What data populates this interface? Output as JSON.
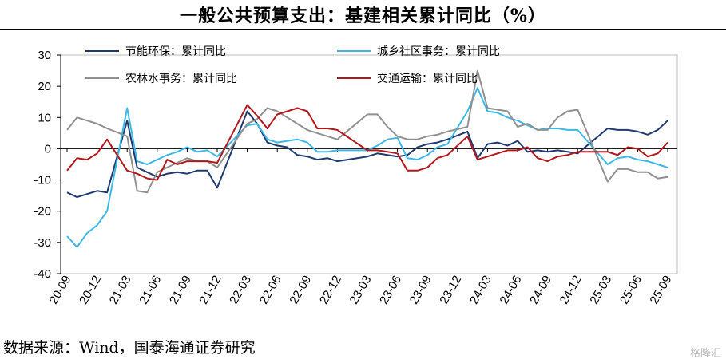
{
  "header": {
    "title": "一般公共预算支出：基建相关累计同比（%）"
  },
  "footer": {
    "source": "数据来源：Wind，国泰海通证券研究",
    "watermark": "格隆汇"
  },
  "chart_data": {
    "type": "line",
    "title": "一般公共预算支出：基建相关累计同比（%）",
    "xlabel": "",
    "ylabel": "",
    "ylim": [
      -40,
      30
    ],
    "yticks": [
      30,
      20,
      10,
      0,
      -10,
      -20,
      -30,
      -40
    ],
    "x": [
      "20-09",
      "20-10",
      "20-11",
      "20-12",
      "21-01",
      "21-02",
      "21-03",
      "21-04",
      "21-05",
      "21-06",
      "21-07",
      "21-08",
      "21-09",
      "21-10",
      "21-11",
      "21-12",
      "22-01",
      "22-02",
      "22-03",
      "22-04",
      "22-05",
      "22-06",
      "22-07",
      "22-08",
      "22-09",
      "22-10",
      "22-11",
      "22-12",
      "23-01",
      "23-02",
      "23-03",
      "23-04",
      "23-05",
      "23-06",
      "23-07",
      "23-08",
      "23-09",
      "23-10",
      "23-11",
      "23-12",
      "24-01",
      "24-02",
      "24-03",
      "24-04",
      "24-05",
      "24-06",
      "24-07",
      "24-08",
      "24-09",
      "24-10",
      "24-11",
      "24-12",
      "25-01",
      "25-02",
      "25-03",
      "25-04",
      "25-05",
      "25-06",
      "25-07",
      "25-08",
      "25-09"
    ],
    "xtick_labels": [
      "20-09",
      "20-12",
      "21-03",
      "21-06",
      "21-09",
      "21-12",
      "22-03",
      "22-06",
      "22-09",
      "22-12",
      "23-03",
      "23-06",
      "23-09",
      "23-12",
      "24-03",
      "24-06",
      "24-09",
      "24-12",
      "25-03",
      "25-06",
      "25-09"
    ],
    "grid": false,
    "legend_position": "top",
    "series": [
      {
        "name": "节能环保：累计同比",
        "color": "#1f3a6e",
        "values": [
          -14,
          -15.5,
          -14.5,
          -13.5,
          -14,
          null,
          9,
          -6,
          -7.5,
          -9,
          -8,
          -7.5,
          -8,
          -7,
          -7,
          -12.5,
          null,
          null,
          12,
          8,
          2,
          1,
          0.5,
          -2,
          -2.5,
          -3.5,
          -3,
          -4,
          null,
          null,
          -2.5,
          -1.5,
          -2,
          -2.5,
          -2,
          0.5,
          1.5,
          2,
          3,
          null,
          5.5,
          -3,
          1.5,
          2,
          1,
          2.5,
          -1,
          -0.5,
          -1,
          -0.5,
          -1,
          -1.5,
          null,
          null,
          6.5,
          6,
          6,
          5.5,
          4.5,
          6,
          9
        ]
      },
      {
        "name": "城乡社区事务：累计同比",
        "color": "#3db8e6",
        "values": [
          -28,
          -31.5,
          -27,
          -24.5,
          -20,
          null,
          13,
          -4,
          -5,
          -3.5,
          -2,
          -1,
          0.5,
          -1,
          -0.5,
          -2.5,
          null,
          null,
          7.5,
          8,
          3,
          2,
          2.5,
          3,
          2,
          -1,
          -1,
          -0.5,
          null,
          null,
          -0.5,
          1,
          3,
          3.5,
          -3,
          -3.5,
          -2,
          0.5,
          1.5,
          null,
          12,
          19.5,
          12,
          11.5,
          10,
          9,
          7.5,
          6,
          6.5,
          6.5,
          6,
          6,
          null,
          null,
          -5,
          -3,
          -2.5,
          -3.5,
          -4,
          -5,
          -6
        ]
      },
      {
        "name": "农林水事务：累计同比",
        "color": "#909090",
        "values": [
          6,
          10,
          9,
          8,
          6.5,
          null,
          4,
          -13.5,
          -14,
          -7.5,
          -6,
          -4.5,
          -3,
          -4,
          -4,
          -6,
          null,
          null,
          8,
          9.5,
          13,
          12,
          10,
          8,
          6,
          5,
          4,
          3,
          null,
          null,
          11,
          11,
          7,
          4,
          3,
          3,
          4,
          4.5,
          5.5,
          null,
          7,
          25,
          13,
          12.5,
          12,
          7,
          8,
          6,
          6,
          10,
          12,
          12.5,
          null,
          null,
          -10.5,
          -6.5,
          -6.5,
          -7.5,
          -7.5,
          -9.5,
          -9
        ]
      },
      {
        "name": "交通运输：累计同比",
        "color": "#b3171c",
        "values": [
          -7,
          -3,
          -3.5,
          -1.5,
          3,
          null,
          -7,
          -8,
          -9.5,
          -10,
          -3.5,
          -5,
          -4,
          -4,
          -4,
          -4.5,
          null,
          null,
          14,
          10.5,
          6.5,
          11,
          12,
          13,
          12,
          6.5,
          6.5,
          6,
          null,
          null,
          -0.5,
          -0.5,
          -1,
          -1.5,
          -7,
          -7,
          -6,
          -3,
          -2,
          null,
          4,
          -3.5,
          -2.5,
          -1.5,
          -0.5,
          -0.5,
          0.5,
          -3,
          -4,
          -2.5,
          -2,
          -1,
          null,
          null,
          -1,
          -2,
          0.5,
          0,
          -2.5,
          -1.5,
          2
        ]
      }
    ]
  }
}
